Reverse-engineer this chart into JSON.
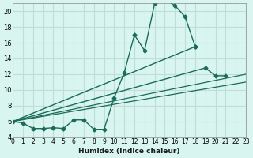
{
  "xlabel": "Humidex (Indice chaleur)",
  "ylabel": "",
  "background_color": "#d8f5f0",
  "grid_color": "#c0ddd8",
  "line_color": "#1a6b5a",
  "xlim": [
    0,
    23
  ],
  "ylim": [
    4,
    21
  ],
  "xticks": [
    0,
    1,
    2,
    3,
    4,
    5,
    6,
    7,
    8,
    9,
    10,
    11,
    12,
    13,
    14,
    15,
    16,
    17,
    18,
    19,
    20,
    21,
    22,
    23
  ],
  "yticks": [
    4,
    6,
    8,
    10,
    12,
    14,
    16,
    18,
    20
  ],
  "series": [
    {
      "x": [
        0,
        1,
        2,
        3,
        4,
        5,
        6,
        7,
        8,
        9,
        10,
        11,
        12,
        13,
        14,
        15,
        16,
        17,
        18
      ],
      "y": [
        6.0,
        5.8,
        5.1,
        5.1,
        5.2,
        5.1,
        6.2,
        6.2,
        5.0,
        5.0,
        9.0,
        12.2,
        17.0,
        15.0,
        21.0,
        21.5,
        20.7,
        19.3,
        15.5
      ]
    },
    {
      "x": [
        0,
        19,
        20,
        21
      ],
      "y": [
        6.0,
        12.8,
        11.8,
        11.8
      ]
    },
    {
      "x": [
        0,
        23
      ],
      "y": [
        6.0,
        12.0
      ]
    },
    {
      "x": [
        0,
        23
      ],
      "y": [
        6.0,
        11.0
      ]
    }
  ]
}
